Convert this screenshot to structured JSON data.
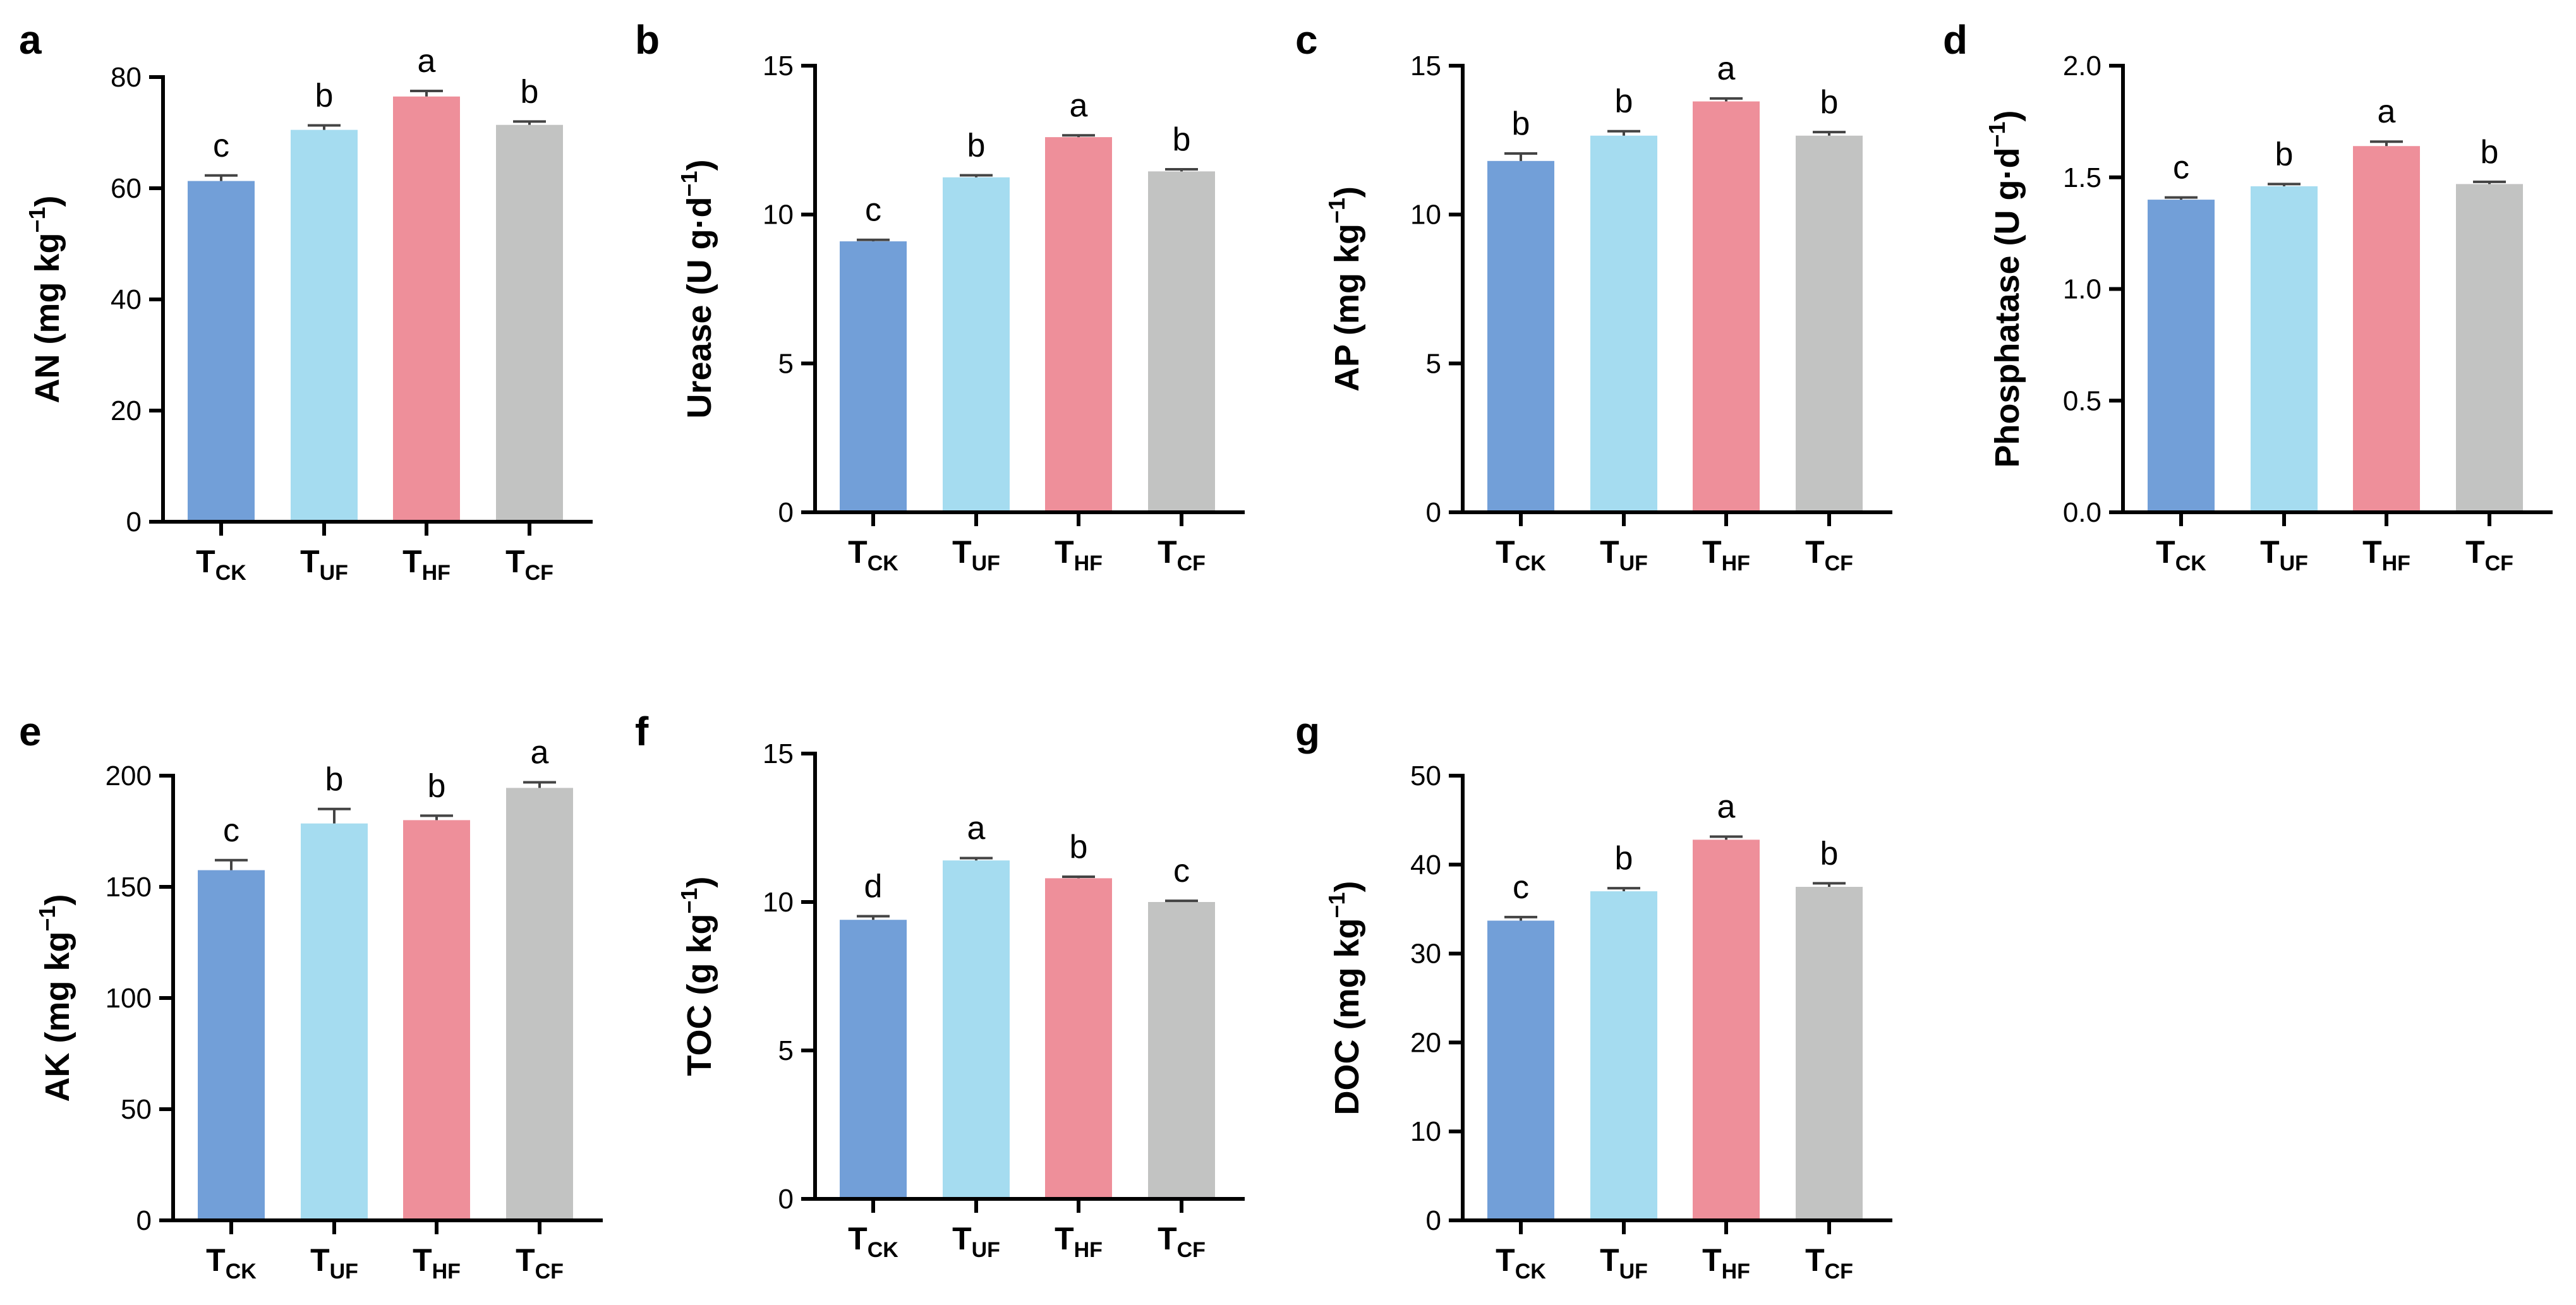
{
  "figure": {
    "categories": [
      {
        "main": "T",
        "sub": "CK"
      },
      {
        "main": "T",
        "sub": "UF"
      },
      {
        "main": "T",
        "sub": "HF"
      },
      {
        "main": "T",
        "sub": "CF"
      }
    ],
    "colors": [
      "#729fd8",
      "#a5dcf0",
      "#ee8f9a",
      "#c2c3c2"
    ]
  },
  "chart_data": [
    {
      "panel": "a",
      "type": "bar",
      "ylabel": "AN (mg kg",
      "ylabel_sup": "−1",
      "ylabel_tail": ")",
      "ylim": [
        0,
        80
      ],
      "yticks": [
        0,
        20,
        40,
        60,
        80
      ],
      "values": [
        61.3,
        70.5,
        76.5,
        71.4
      ],
      "errors": [
        1.0,
        0.8,
        1.0,
        0.6
      ],
      "letters": [
        "c",
        "b",
        "a",
        "b"
      ]
    },
    {
      "panel": "b",
      "type": "bar",
      "ylabel": "Urease  (U g·d",
      "ylabel_sup": "−1",
      "ylabel_tail": ")",
      "ylim": [
        0,
        15
      ],
      "yticks": [
        0,
        5,
        10,
        15
      ],
      "values": [
        9.1,
        11.25,
        12.6,
        11.45
      ],
      "errors": [
        0.05,
        0.07,
        0.06,
        0.07
      ],
      "letters": [
        "c",
        "b",
        "a",
        "b"
      ]
    },
    {
      "panel": "c",
      "type": "bar",
      "ylabel": "AP (mg kg",
      "ylabel_sup": "−1",
      "ylabel_tail": ")",
      "ylim": [
        0,
        15
      ],
      "yticks": [
        0,
        5,
        10,
        15
      ],
      "values": [
        11.8,
        12.65,
        13.8,
        12.65
      ],
      "errors": [
        0.25,
        0.15,
        0.1,
        0.12
      ],
      "letters": [
        "b",
        "b",
        "a",
        "b"
      ]
    },
    {
      "panel": "d",
      "type": "bar",
      "ylabel": "Phosphatase  (U g·d",
      "ylabel_sup": "−1",
      "ylabel_tail": ")",
      "ylim": [
        0,
        2.0
      ],
      "yticks": [
        0.0,
        0.5,
        1.0,
        1.5,
        2.0
      ],
      "ytick_decimals": 1,
      "values": [
        1.4,
        1.46,
        1.64,
        1.47
      ],
      "errors": [
        0.01,
        0.01,
        0.02,
        0.01
      ],
      "letters": [
        "c",
        "b",
        "a",
        "b"
      ]
    },
    {
      "panel": "e",
      "type": "bar",
      "ylabel": "AK (mg kg",
      "ylabel_sup": "−1",
      "ylabel_tail": ")",
      "ylim": [
        0,
        200
      ],
      "yticks": [
        0,
        50,
        100,
        150,
        200
      ],
      "values": [
        157.5,
        178.5,
        180.0,
        194.5
      ],
      "errors": [
        4.5,
        6.5,
        2.0,
        2.5
      ],
      "letters": [
        "c",
        "b",
        "b",
        "a"
      ]
    },
    {
      "panel": "f",
      "type": "bar",
      "ylabel": "TOC (g kg",
      "ylabel_sup": "−1",
      "ylabel_tail": ")",
      "ylim": [
        0,
        15
      ],
      "yticks": [
        0,
        5,
        10,
        15
      ],
      "values": [
        9.4,
        11.4,
        10.8,
        10.0
      ],
      "errors": [
        0.12,
        0.08,
        0.05,
        0.04
      ],
      "letters": [
        "d",
        "a",
        "b",
        "c"
      ]
    },
    {
      "panel": "g",
      "type": "bar",
      "ylabel": "DOC (mg kg",
      "ylabel_sup": "−1",
      "ylabel_tail": ")",
      "ylim": [
        0,
        50
      ],
      "yticks": [
        0,
        10,
        20,
        30,
        40,
        50
      ],
      "values": [
        33.7,
        37.0,
        42.8,
        37.5
      ],
      "errors": [
        0.4,
        0.35,
        0.35,
        0.4
      ],
      "letters": [
        "c",
        "b",
        "a",
        "b"
      ]
    }
  ]
}
